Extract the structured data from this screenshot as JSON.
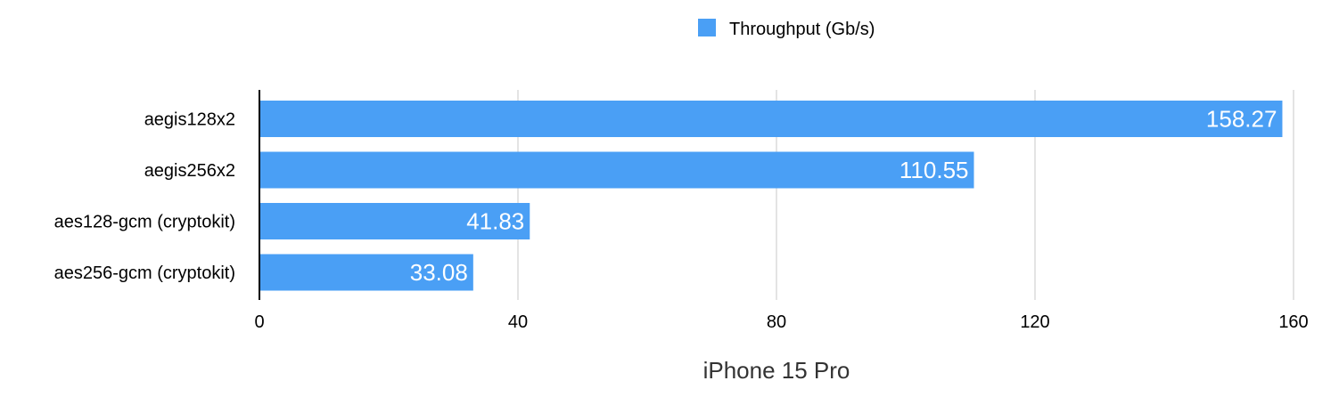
{
  "colors": {
    "bar": "#4a9ff5",
    "grid": "#c8c8c8",
    "axis": "#000000",
    "value_label": "#ffffff"
  },
  "chart_data": {
    "type": "bar",
    "orientation": "horizontal",
    "categories": [
      "aegis128x2",
      "aegis256x2",
      "aes128-gcm (cryptokit)",
      "aes256-gcm (cryptokit)"
    ],
    "series": [
      {
        "name": "Throughput (Gb/s)",
        "values": [
          158.27,
          110.55,
          41.83,
          33.08
        ]
      }
    ],
    "value_labels": [
      "158.27",
      "110.55",
      "41.83",
      "33.08"
    ],
    "xlabel": "iPhone 15 Pro",
    "ylabel": "",
    "xlim": [
      0,
      160
    ],
    "xticks": [
      "0",
      "40",
      "80",
      "120",
      "160"
    ],
    "grid": true,
    "legend_position": "top-center"
  }
}
